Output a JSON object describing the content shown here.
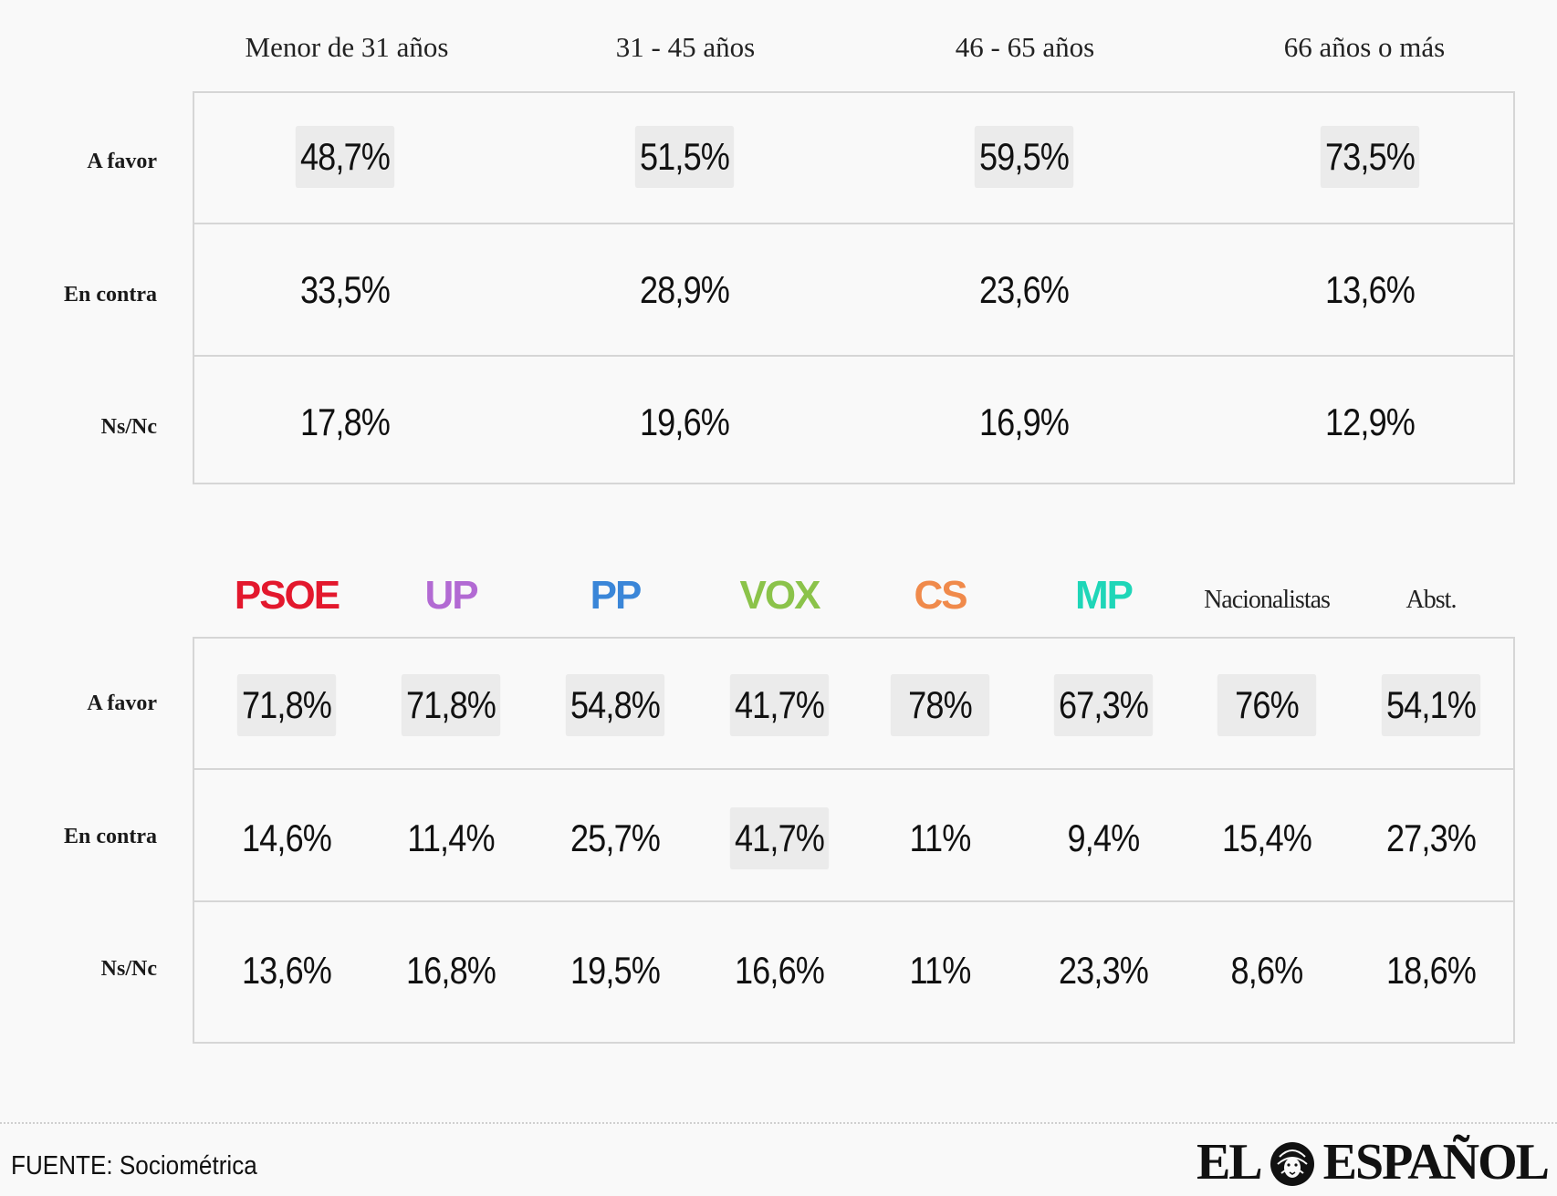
{
  "chart_data": [
    {
      "type": "table",
      "columns": [
        "Menor de 31 años",
        "31 - 45 años",
        "46 - 65 años",
        "66 años o más"
      ],
      "rows": [
        {
          "label": "A favor",
          "values": [
            "48,7%",
            "51,5%",
            "59,5%",
            "73,5%"
          ],
          "highlight": [
            true,
            true,
            true,
            true
          ]
        },
        {
          "label": "En contra",
          "values": [
            "33,5%",
            "28,9%",
            "23,6%",
            "13,6%"
          ],
          "highlight": [
            false,
            false,
            false,
            false
          ]
        },
        {
          "label": "Ns/Nc",
          "values": [
            "17,8%",
            "19,6%",
            "16,9%",
            "12,9%"
          ],
          "highlight": [
            false,
            false,
            false,
            false
          ]
        }
      ]
    },
    {
      "type": "table",
      "columns": [
        {
          "label": "PSOE",
          "color": "#e3182d"
        },
        {
          "label": "UP",
          "color": "#b26ad3"
        },
        {
          "label": "PP",
          "color": "#3a86d8"
        },
        {
          "label": "VOX",
          "color": "#8bc34a"
        },
        {
          "label": "CS",
          "color": "#f08a4b"
        },
        {
          "label": "MP",
          "color": "#1fd6b8"
        },
        {
          "label": "Nacionalistas",
          "color": "#222222"
        },
        {
          "label": "Abst.",
          "color": "#222222"
        }
      ],
      "rows": [
        {
          "label": "A favor",
          "values": [
            "71,8%",
            "71,8%",
            "54,8%",
            "41,7%",
            "78%",
            "67,3%",
            "76%",
            "54,1%"
          ],
          "highlight": [
            true,
            true,
            true,
            true,
            true,
            true,
            true,
            true
          ]
        },
        {
          "label": "En contra",
          "values": [
            "14,6%",
            "11,4%",
            "25,7%",
            "41,7%",
            "11%",
            "9,4%",
            "15,4%",
            "27,3%"
          ],
          "highlight": [
            false,
            false,
            false,
            true,
            false,
            false,
            false,
            false
          ]
        },
        {
          "label": "Ns/Nc",
          "values": [
            "13,6%",
            "16,8%",
            "19,5%",
            "16,6%",
            "11%",
            "23,3%",
            "8,6%",
            "18,6%"
          ],
          "highlight": [
            false,
            false,
            false,
            false,
            false,
            false,
            false,
            false
          ]
        }
      ]
    }
  ],
  "footer": {
    "source": "FUENTE: Sociométrica",
    "logo_left": "EL",
    "logo_right": "ESPAÑOL"
  }
}
